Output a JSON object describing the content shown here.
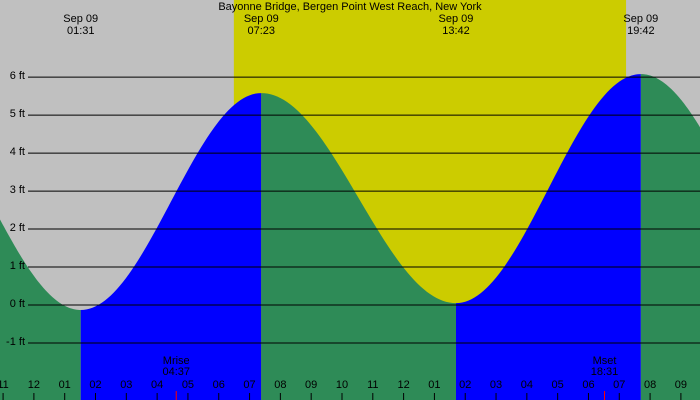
{
  "chart_data": {
    "type": "tide",
    "title": "Bayonne Bridge, Bergen Point West Reach, New York",
    "colors": {
      "night": "#c0c0c0",
      "day": "#cccc00",
      "rising": "#0000ff",
      "falling": "#2e8b57"
    },
    "daylight": [
      6.49,
      19.22
    ],
    "extremes": [
      {
        "date": "Sep 09",
        "time": "01:31",
        "hour": 1.52,
        "height": -0.13
      },
      {
        "date": "Sep 09",
        "time": "07:23",
        "hour": 7.38,
        "height": 5.58
      },
      {
        "date": "Sep 09",
        "time": "13:42",
        "hour": 13.7,
        "height": 0.05
      },
      {
        "date": "Sep 09",
        "time": "19:42",
        "hour": 19.7,
        "height": 6.08
      }
    ],
    "moon": [
      {
        "label": "Mrise",
        "time": "04:37",
        "hour": 4.62
      },
      {
        "label": "Mset",
        "time": "18:31",
        "hour": 18.52
      }
    ],
    "xlim": [
      -1.1,
      21.62
    ],
    "ylim": [
      -2.5,
      8.03
    ],
    "yticks": [
      {
        "value": -1,
        "label": "-1 ft"
      },
      {
        "value": 0,
        "label": "0 ft"
      },
      {
        "value": 1,
        "label": "1 ft"
      },
      {
        "value": 2,
        "label": "2 ft"
      },
      {
        "value": 3,
        "label": "3 ft"
      },
      {
        "value": 4,
        "label": "4 ft"
      },
      {
        "value": 5,
        "label": "5 ft"
      },
      {
        "value": 6,
        "label": "6 ft"
      }
    ],
    "xticks": [
      {
        "value": -1,
        "label": "11"
      },
      {
        "value": 0,
        "label": "12"
      },
      {
        "value": 1,
        "label": "01"
      },
      {
        "value": 2,
        "label": "02"
      },
      {
        "value": 3,
        "label": "03"
      },
      {
        "value": 4,
        "label": "04"
      },
      {
        "value": 5,
        "label": "05"
      },
      {
        "value": 6,
        "label": "06"
      },
      {
        "value": 7,
        "label": "07"
      },
      {
        "value": 8,
        "label": "08"
      },
      {
        "value": 9,
        "label": "09"
      },
      {
        "value": 10,
        "label": "10"
      },
      {
        "value": 11,
        "label": "11"
      },
      {
        "value": 12,
        "label": "12"
      },
      {
        "value": 13,
        "label": "01"
      },
      {
        "value": 14,
        "label": "02"
      },
      {
        "value": 15,
        "label": "03"
      },
      {
        "value": 16,
        "label": "04"
      },
      {
        "value": 17,
        "label": "05"
      },
      {
        "value": 18,
        "label": "06"
      },
      {
        "value": 19,
        "label": "07"
      },
      {
        "value": 20,
        "label": "08"
      },
      {
        "value": 21,
        "label": "09"
      }
    ]
  }
}
